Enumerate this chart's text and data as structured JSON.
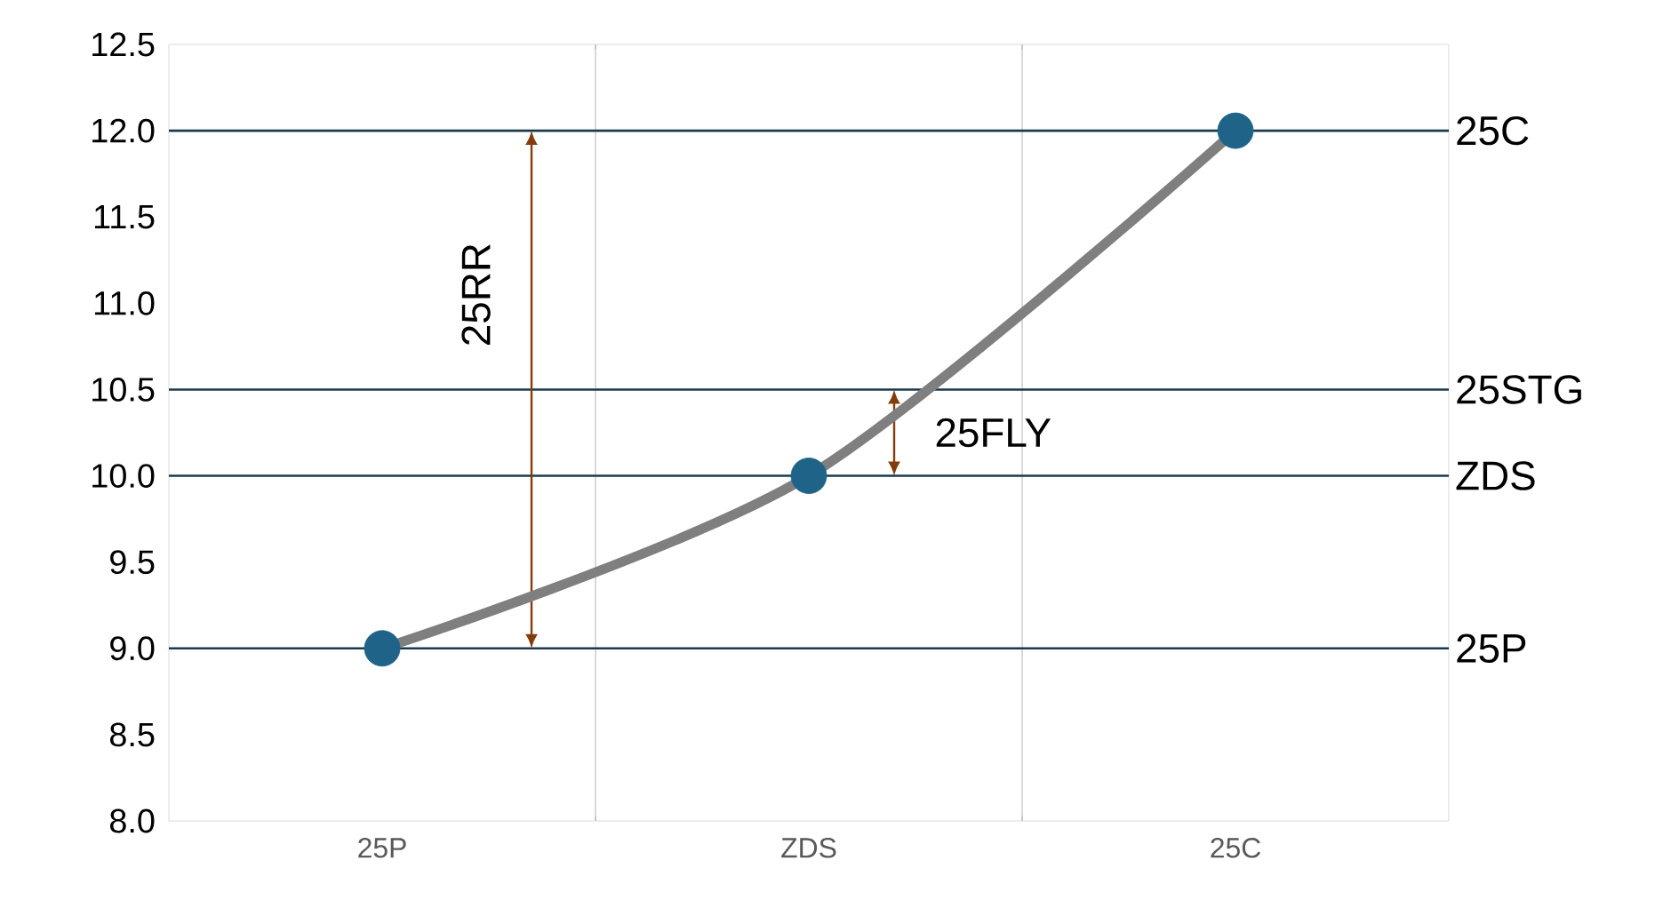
{
  "chart_data": {
    "type": "line",
    "categories": [
      "25P",
      "ZDS",
      "25C"
    ],
    "series": [
      {
        "color": "#7f7f7f",
        "colors": [
          "#1f6488",
          "#1f6488",
          "#1f6488"
        ],
        "values": [
          9,
          10,
          12
        ]
      }
    ],
    "marker": "circle",
    "line_style": "solid",
    "grid": "x",
    "ylim": [
      8,
      12.5
    ],
    "yticks": [
      {
        "value": 8,
        "label": "8.0"
      },
      {
        "value": 8.5,
        "label": "8.5"
      },
      {
        "value": 9,
        "label": "9.0"
      },
      {
        "value": 9.5,
        "label": "9.5"
      },
      {
        "value": 10,
        "label": "10.0"
      },
      {
        "value": 10.5,
        "label": "10.5"
      },
      {
        "value": 11,
        "label": "11.0"
      },
      {
        "value": 11.5,
        "label": "11.5"
      },
      {
        "value": 12,
        "label": "12.0"
      },
      {
        "value": 12.5,
        "label": "12.5"
      }
    ],
    "ref_lines": [
      {
        "axis": "y",
        "value": 12,
        "label": "25C",
        "color": "#1b3a4b"
      },
      {
        "axis": "y",
        "value": 10.5,
        "label": "25STG",
        "color": "#1b3a4b"
      },
      {
        "axis": "y",
        "value": 10,
        "label": "ZDS",
        "color": "#1b3a4b"
      },
      {
        "axis": "y",
        "value": 9,
        "label": "25P",
        "color": "#1b3a4b"
      }
    ],
    "annotations": [
      "25RR",
      "25FLY"
    ]
  }
}
